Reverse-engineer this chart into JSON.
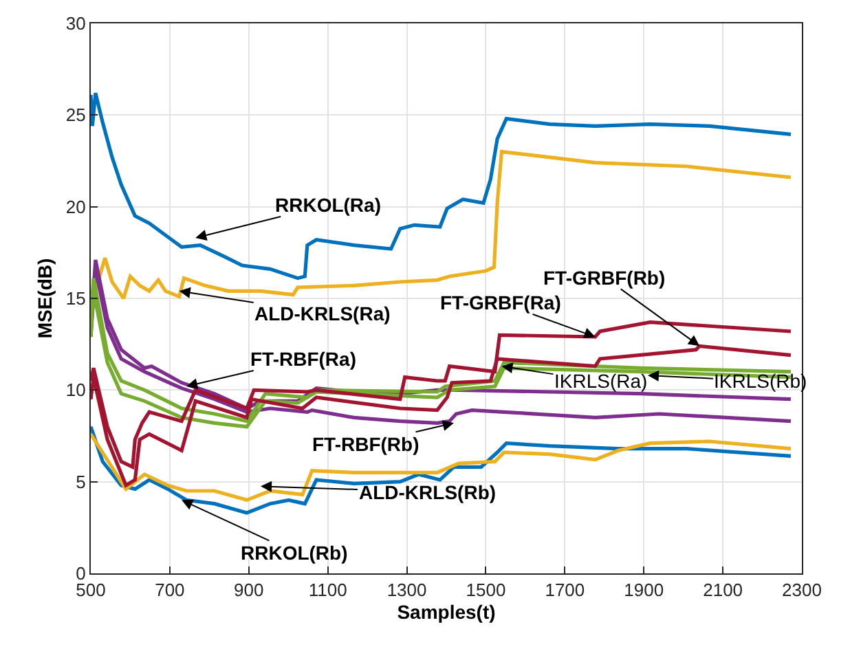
{
  "chart_data": {
    "type": "line",
    "xlabel": "Samples(t)",
    "ylabel": "MSE(dB)",
    "xlim": [
      500,
      2300
    ],
    "ylim": [
      0,
      30
    ],
    "xticks": [
      500,
      700,
      900,
      1100,
      1300,
      1500,
      1700,
      1900,
      2100,
      2300
    ],
    "yticks": [
      0,
      5,
      10,
      15,
      20,
      25,
      30
    ],
    "grid": true,
    "marker": "none",
    "line_style": "solid",
    "series": [
      {
        "color": "#0072bd",
        "x": [
          500,
          504,
          512,
          530,
          554,
          577,
          612,
          648,
          730,
          777,
          836,
          883,
          954,
          1024,
          1042,
          1048,
          1071,
          1166,
          1260,
          1283,
          1319,
          1384,
          1402,
          1442,
          1494,
          1512,
          1529,
          1552,
          1662,
          1777,
          1916,
          2066,
          2272
        ],
        "values": [
          26.1,
          24.4,
          26.2,
          24.6,
          22.7,
          21.2,
          19.5,
          19.1,
          17.8,
          17.9,
          17.3,
          16.8,
          16.6,
          16.1,
          16.2,
          17.9,
          18.2,
          17.9,
          17.7,
          18.8,
          19.0,
          18.9,
          19.9,
          20.4,
          20.2,
          21.5,
          23.7,
          24.8,
          24.5,
          24.4,
          24.5,
          24.4,
          23.95
        ]
      },
      {
        "color": "#edb120",
        "x": [
          500,
          518,
          536,
          554,
          583,
          600,
          624,
          648,
          671,
          689,
          724,
          736,
          789,
          848,
          930,
          1012,
          1024,
          1166,
          1283,
          1377,
          1408,
          1500,
          1521,
          1529,
          1540,
          1777,
          2009,
          2272
        ],
        "values": [
          14.6,
          15.9,
          17.2,
          15.9,
          15.0,
          16.2,
          15.7,
          15.4,
          16.0,
          15.4,
          15.1,
          16.1,
          15.7,
          15.4,
          15.4,
          15.2,
          15.6,
          15.7,
          15.9,
          16.0,
          16.2,
          16.5,
          16.7,
          20.2,
          23.0,
          22.4,
          22.2,
          21.6
        ]
      },
      {
        "color": "#0072bd",
        "x": [
          500,
          530,
          577,
          612,
          648,
          695,
          742,
          813,
          895,
          954,
          1001,
          1042,
          1071,
          1166,
          1283,
          1330,
          1384,
          1419,
          1488,
          1529,
          1552,
          1662,
          1835,
          2009,
          2272
        ],
        "values": [
          8.0,
          6.1,
          4.8,
          4.6,
          5.1,
          4.6,
          4.0,
          3.8,
          3.3,
          3.8,
          4.0,
          3.8,
          5.1,
          4.9,
          5.0,
          5.4,
          5.1,
          5.8,
          5.8,
          6.6,
          7.1,
          6.95,
          6.8,
          6.8,
          6.4
        ]
      },
      {
        "color": "#edb120",
        "x": [
          500,
          589,
          636,
          695,
          742,
          813,
          895,
          954,
          1036,
          1060,
          1166,
          1377,
          1431,
          1523,
          1546,
          1662,
          1777,
          1835,
          1916,
          2066,
          2272
        ],
        "values": [
          7.6,
          4.6,
          5.4,
          4.8,
          4.5,
          4.5,
          4.0,
          4.5,
          4.3,
          5.6,
          5.5,
          5.5,
          6.0,
          6.1,
          6.6,
          6.5,
          6.2,
          6.7,
          7.1,
          7.2,
          6.8
        ]
      },
      {
        "color": "#7e2f8e",
        "x": [
          500,
          512,
          542,
          577,
          636,
          654,
          730,
          813,
          895,
          930,
          1024,
          1071,
          1166,
          1283,
          1377,
          1431,
          1662,
          1893,
          2272
        ],
        "values": [
          13.2,
          17.1,
          13.9,
          12.2,
          11.2,
          11.3,
          10.4,
          9.8,
          9.0,
          9.4,
          9.4,
          10.1,
          9.9,
          9.8,
          10.0,
          10.0,
          9.9,
          9.8,
          9.5
        ]
      },
      {
        "color": "#7e2f8e",
        "x": [
          500,
          512,
          542,
          577,
          636,
          730,
          813,
          895,
          954,
          1048,
          1060,
          1166,
          1283,
          1377,
          1408,
          1425,
          1465,
          1546,
          1777,
          1939,
          2272
        ],
        "values": [
          12.9,
          16.6,
          13.4,
          11.7,
          11.0,
          10.1,
          9.5,
          8.8,
          9.0,
          8.8,
          8.9,
          8.5,
          8.3,
          8.2,
          8.3,
          8.7,
          8.9,
          8.8,
          8.5,
          8.7,
          8.3
        ]
      },
      {
        "color": "#77ac30",
        "x": [
          500,
          507,
          542,
          577,
          636,
          730,
          813,
          895,
          942,
          1048,
          1071,
          1377,
          1397,
          1523,
          1546,
          1893,
          2272
        ],
        "values": [
          13.9,
          16.1,
          12.0,
          10.5,
          10.0,
          9.0,
          8.7,
          8.3,
          9.8,
          9.6,
          10.0,
          9.9,
          10.2,
          10.5,
          11.5,
          11.2,
          11.0
        ]
      },
      {
        "color": "#77ac30",
        "x": [
          500,
          507,
          542,
          577,
          636,
          730,
          813,
          895,
          942,
          1024,
          1071,
          1377,
          1408,
          1523,
          1546,
          1893,
          2272
        ],
        "values": [
          12.9,
          15.4,
          11.5,
          9.8,
          9.4,
          8.5,
          8.2,
          8.0,
          9.4,
          9.3,
          9.9,
          9.6,
          10.0,
          10.2,
          11.2,
          11.0,
          10.7
        ]
      },
      {
        "color": "#a2142f",
        "x": [
          500,
          507,
          542,
          577,
          606,
          612,
          630,
          648,
          730,
          765,
          895,
          913,
          1048,
          1071,
          1283,
          1295,
          1377,
          1397,
          1408,
          1523,
          1535,
          1777,
          1789,
          1916,
          2272
        ],
        "values": [
          10.5,
          11.2,
          8.0,
          6.1,
          5.8,
          7.3,
          8.2,
          8.8,
          8.3,
          10.0,
          9.0,
          10.0,
          9.9,
          10.0,
          9.5,
          10.7,
          10.5,
          10.5,
          11.3,
          11.0,
          13.0,
          12.9,
          13.2,
          13.7,
          13.2
        ]
      },
      {
        "color": "#a2142f",
        "x": [
          500,
          507,
          542,
          589,
          612,
          624,
          648,
          730,
          765,
          895,
          907,
          1036,
          1071,
          1283,
          1377,
          1402,
          1414,
          1512,
          1529,
          1777,
          1789,
          2032,
          2041,
          2272
        ],
        "values": [
          9.5,
          10.7,
          7.3,
          4.8,
          5.1,
          7.3,
          7.6,
          6.7,
          9.4,
          8.5,
          9.5,
          9.0,
          9.6,
          9.0,
          8.9,
          9.6,
          10.4,
          10.5,
          11.7,
          11.3,
          11.7,
          12.2,
          12.4,
          11.9
        ]
      }
    ],
    "annotations": [
      {
        "text": "RRKOL(Ra)",
        "x": 765,
        "y": 18.3
      },
      {
        "text": "ALD-KRLS(Ra)",
        "x": 724,
        "y": 15.4
      },
      {
        "text": "FT-RBF(Ra)",
        "x": 742,
        "y": 10.2
      },
      {
        "text": "FT-RBF(Rb)",
        "x": 1419,
        "y": 8.2
      },
      {
        "text": "ALD-KRLS(Rb)",
        "x": 930,
        "y": 4.75
      },
      {
        "text": "RRKOL(Rb)",
        "x": 730,
        "y": 4.0
      },
      {
        "text": "FT-GRBF(Ra)",
        "x": 1777,
        "y": 12.9
      },
      {
        "text": "FT-GRBF(Rb)",
        "x": 2041,
        "y": 12.4
      },
      {
        "text": "IKRLS(Ra)",
        "x": 1540,
        "y": 11.3
      },
      {
        "text": "IKRLS(Rb)",
        "x": 1910,
        "y": 10.8
      }
    ]
  }
}
